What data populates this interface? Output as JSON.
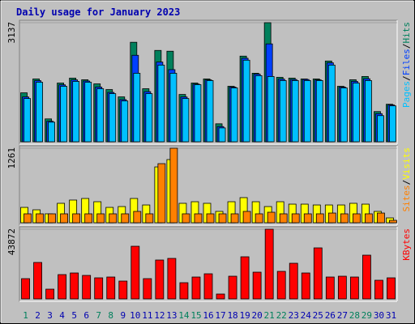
{
  "chart_data": [
    {
      "type": "bar",
      "title": "Daily usage for January 2023",
      "legend_separator": "/",
      "ylim": [
        0,
        3137
      ],
      "yticks": [
        3137
      ],
      "series": [
        {
          "name": "Hits",
          "color": "#00805c",
          "values": [
            1289,
            1654,
            602,
            1547,
            1676,
            1633,
            1525,
            1375,
            1182,
            2621,
            1397,
            2406,
            2385,
            1246,
            1547,
            1654,
            473,
            1461,
            2256,
            1805,
            3137,
            1697,
            1676,
            1654,
            1654,
            2127,
            1461,
            1633,
            1719,
            795,
            988
          ]
        },
        {
          "name": "Files",
          "color": "#0040ff",
          "values": [
            1180,
            1610,
            540,
            1500,
            1630,
            1600,
            1440,
            1300,
            1110,
            2278,
            1320,
            2100,
            1900,
            1180,
            1520,
            1630,
            400,
            1440,
            2200,
            1780,
            2578,
            1650,
            1640,
            1640,
            1630,
            2080,
            1440,
            1590,
            1660,
            740,
            970
          ]
        },
        {
          "name": "Pages",
          "color": "#00c0ff",
          "values": [
            1139,
            1569,
            516,
            1461,
            1590,
            1569,
            1397,
            1268,
            1075,
            1805,
            1268,
            2020,
            1805,
            1139,
            1504,
            1612,
            365,
            1418,
            2149,
            1741,
            1719,
            1612,
            1612,
            1612,
            1612,
            2020,
            1418,
            1547,
            1612,
            688,
            946
          ]
        }
      ]
    },
    {
      "type": "bar",
      "legend_separator": "/",
      "ylim": [
        0,
        1261
      ],
      "yticks": [
        1261
      ],
      "series": [
        {
          "name": "Visits",
          "color": "#ffff00",
          "values": [
            260,
            219,
            151,
            329,
            384,
            411,
            356,
            260,
            274,
            411,
            301,
            945,
            1069,
            329,
            356,
            329,
            192,
            356,
            425,
            356,
            274,
            356,
            315,
            315,
            301,
            301,
            301,
            329,
            315,
            192,
            82
          ]
        },
        {
          "name": "Sites",
          "color": "#ff8000",
          "values": [
            151,
            151,
            151,
            151,
            151,
            151,
            151,
            151,
            151,
            192,
            151,
            1000,
            1261,
            151,
            151,
            151,
            151,
            151,
            192,
            151,
            178,
            151,
            151,
            151,
            151,
            164,
            151,
            151,
            151,
            164,
            41
          ]
        }
      ]
    },
    {
      "type": "bar",
      "ylim": [
        0,
        43872
      ],
      "yticks": [
        43872
      ],
      "categories": [
        "1",
        "2",
        "3",
        "4",
        "5",
        "6",
        "7",
        "8",
        "9",
        "10",
        "11",
        "12",
        "13",
        "14",
        "15",
        "16",
        "17",
        "18",
        "19",
        "20",
        "21",
        "22",
        "23",
        "24",
        "25",
        "26",
        "27",
        "28",
        "29",
        "30",
        "31"
      ],
      "category_colors": [
        "#00805c",
        "#0000b0",
        "#0000b0",
        "#0000b0",
        "#0000b0",
        "#0000b0",
        "#00805c",
        "#00805c",
        "#0000b0",
        "#0000b0",
        "#0000b0",
        "#0000b0",
        "#0000b0",
        "#00805c",
        "#00805c",
        "#0000b0",
        "#0000b0",
        "#0000b0",
        "#0000b0",
        "#0000b0",
        "#00805c",
        "#00805c",
        "#0000b0",
        "#0000b0",
        "#0000b0",
        "#0000b0",
        "#0000b0",
        "#00805c",
        "#00805c",
        "#0000b0",
        "#0000b0"
      ],
      "series": [
        {
          "name": "KBytes",
          "color": "#ff0000",
          "values": [
            12750,
            22950,
            6120,
            15300,
            16320,
            14790,
            13260,
            13770,
            11220,
            33150,
            12750,
            24480,
            25500,
            10200,
            13770,
            15810,
            3060,
            14280,
            26520,
            16830,
            43872,
            17340,
            22440,
            16320,
            32130,
            13770,
            14280,
            13770,
            27540,
            11730,
            13260
          ]
        }
      ]
    }
  ]
}
